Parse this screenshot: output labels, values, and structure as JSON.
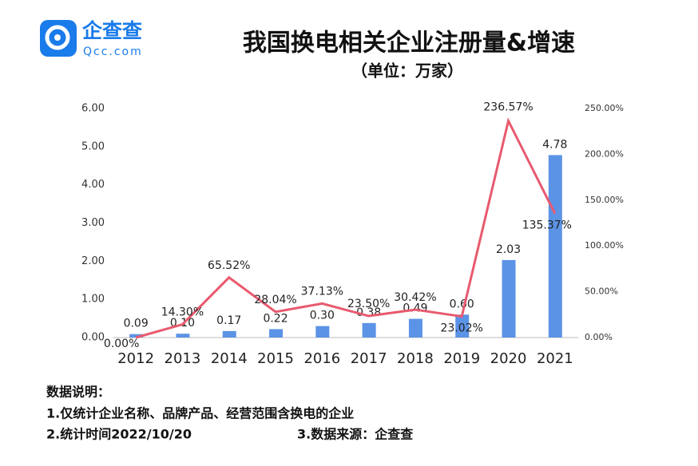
{
  "logo": {
    "name": "企查查",
    "url": "Qcc.com"
  },
  "notes": {
    "heading": "数据说明：",
    "line1": "1.仅统计企业名称、品牌产品、经营范围含换电的企业",
    "line2": "2.统计时间2022/10/20",
    "line3": "3.数据来源：企查查"
  },
  "chart_data": {
    "type": "bar",
    "title": "我国换电相关企业注册量&增速",
    "subtitle": "（单位：万家）",
    "categories": [
      "2012",
      "2013",
      "2014",
      "2015",
      "2016",
      "2017",
      "2018",
      "2019",
      "2020",
      "2021"
    ],
    "series": [
      {
        "type": "bar",
        "color": "#5b93e6",
        "values": [
          0.09,
          0.1,
          0.17,
          0.22,
          0.3,
          0.38,
          0.49,
          0.6,
          2.03,
          4.78
        ],
        "value_labels": [
          "0.09",
          "0.10",
          "0.17",
          "0.22",
          "0.30",
          "0.38",
          "0.49",
          "0.60",
          "2.03",
          "4.78"
        ]
      },
      {
        "type": "line",
        "axis": "y2",
        "color": "#e85a6e",
        "values": [
          0,
          14.3,
          65.52,
          28.04,
          37.13,
          23.5,
          30.42,
          23.02,
          236.57,
          135.37
        ],
        "value_labels": [
          "0.00%",
          "14.30%",
          "65.52%",
          "28.04%",
          "37.13%",
          "23.50%",
          "30.42%",
          "23.02%",
          "236.57%",
          "135.37%"
        ]
      }
    ],
    "ylim": [
      0,
      6
    ],
    "yticks": [
      {
        "value": 0,
        "label": "0.00"
      },
      {
        "value": 1,
        "label": "1.00"
      },
      {
        "value": 2,
        "label": "2.00"
      },
      {
        "value": 3,
        "label": "3.00"
      },
      {
        "value": 4,
        "label": "4.00"
      },
      {
        "value": 5,
        "label": "5.00"
      },
      {
        "value": 6,
        "label": "6.00"
      }
    ],
    "y2lim": [
      0,
      250
    ],
    "y2ticks": [
      {
        "value": 0,
        "label": "0.00%"
      },
      {
        "value": 50,
        "label": "50.00%"
      },
      {
        "value": 100,
        "label": "100.00%"
      },
      {
        "value": 150,
        "label": "150.00%"
      },
      {
        "value": 200,
        "label": "200.00%"
      },
      {
        "value": 250,
        "label": "250.00%"
      }
    ],
    "grid": false
  }
}
